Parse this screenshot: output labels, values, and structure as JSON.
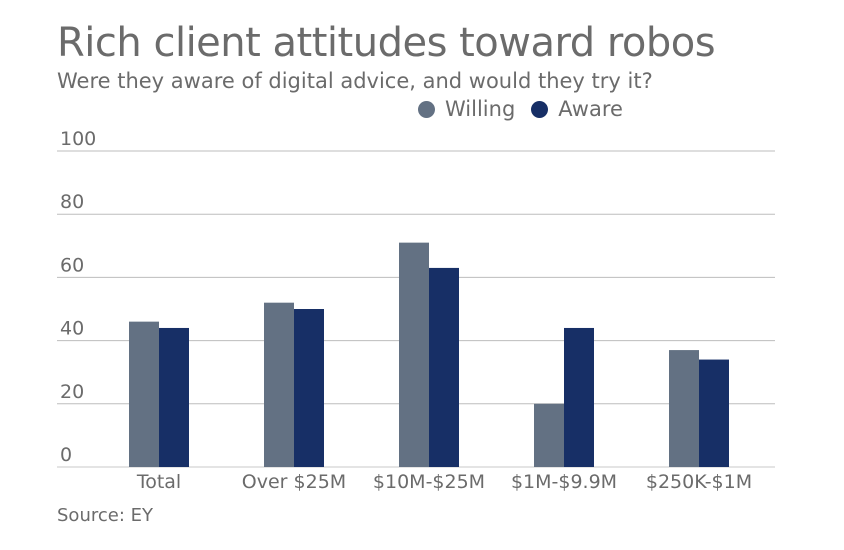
{
  "chart_data": {
    "type": "bar",
    "title": "Rich client attitudes toward robos",
    "subtitle": "Were they aware of digital advice, and would they try it?",
    "categories": [
      "Total",
      "Over $25M",
      "$10M-$25M",
      "$1M-$9.9M",
      "$250K-$1M"
    ],
    "series": [
      {
        "name": "Willing",
        "color": "#637183",
        "values": [
          46,
          52,
          71,
          20,
          37
        ]
      },
      {
        "name": "Aware",
        "color": "#172f66",
        "values": [
          44,
          50,
          63,
          44,
          34
        ]
      }
    ],
    "ylim": [
      0,
      100
    ],
    "yticks": [
      "0",
      "20",
      "40",
      "60",
      "80",
      "100"
    ],
    "grid": true,
    "legend_position": "top-right",
    "source": "Source: EY"
  }
}
